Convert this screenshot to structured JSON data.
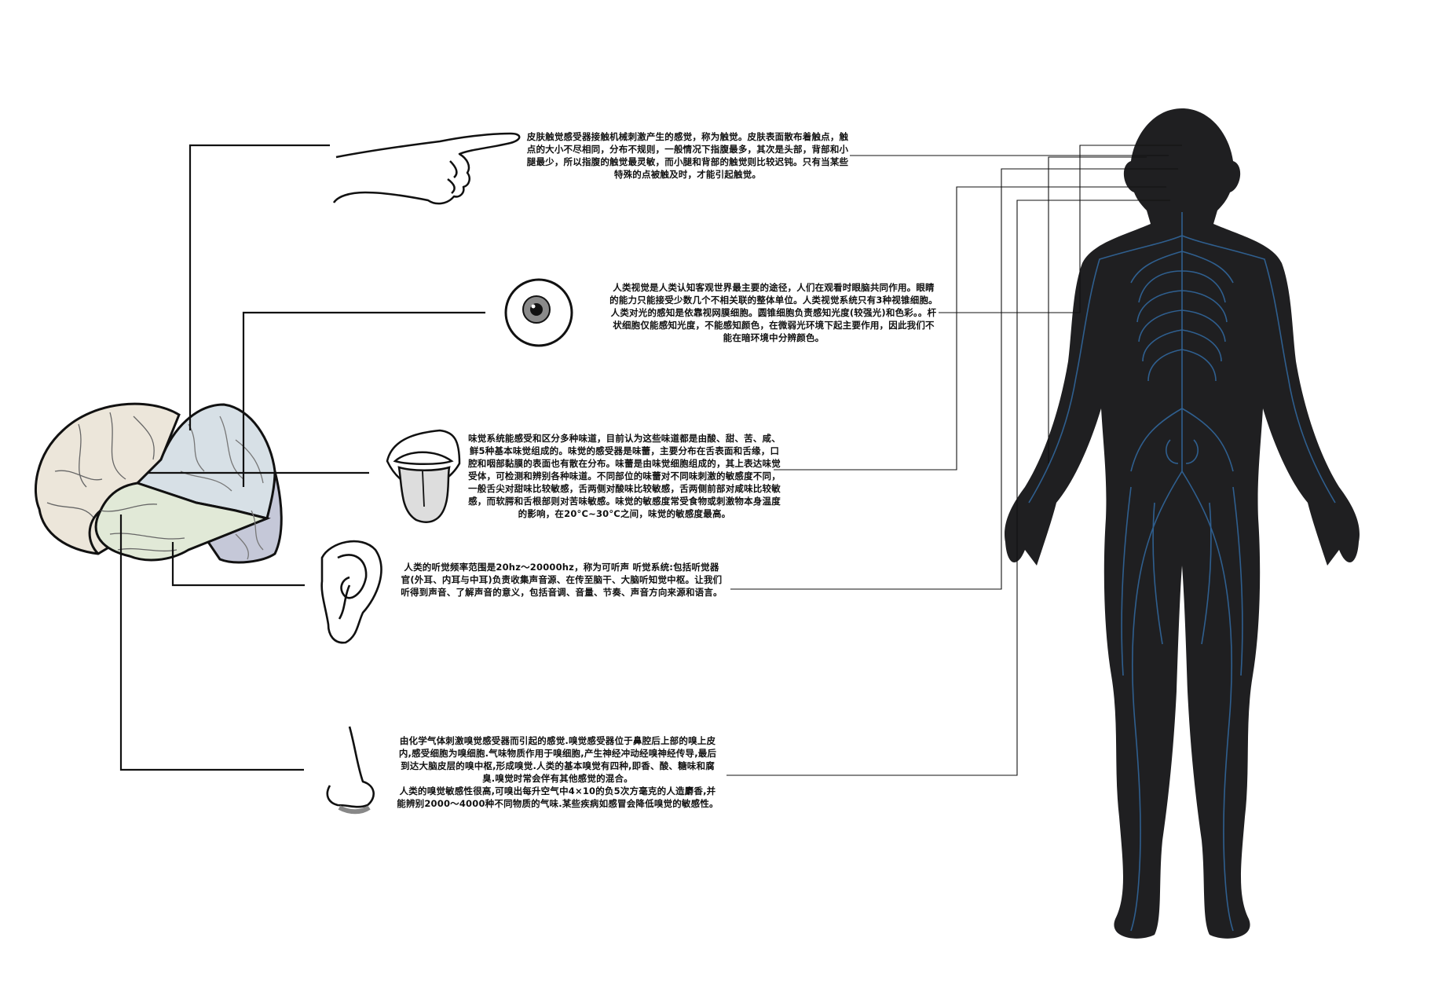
{
  "senses": {
    "touch": {
      "icon": "pointing-hand-icon",
      "text": "皮肤触觉感受器接触机械刺激产生的感觉，称为触觉。皮肤表面散布着触点，触点的大小不尽相同，分布不规则，一般情况下指腹最多，其次是头部，背部和小腿最少，所以指腹的触觉最灵敏，而小腿和背部的触觉则比较迟钝。只有当某些特殊的点被触及时，才能引起触觉。"
    },
    "vision": {
      "icon": "eye-icon",
      "text": "人类视觉是人类认知客观世界最主要的途径，人们在观看时眼脑共同作用。眼睛的能力只能接受少数几个不相关联的整体单位。人类视觉系统只有3种视锥细胞。",
      "text2": "人类对光的感知是依靠视网膜细胞。圆锥细胞负责感知光度(较强光)和色彩。。杆状细胞仅能感知光度，不能感知颜色，在微弱光环境下起主要作用，因此我们不能在暗环境中分辨颜色。"
    },
    "taste": {
      "icon": "mouth-tongue-icon",
      "text": "味觉系统能感受和区分多种味道，目前认为这些味道都是由酸、甜、苦、咸、鲜5种基本味觉组成的。味觉的感受器是味蕾，主要分布在舌表面和舌缘，口腔和咽部黏膜的表面也有散在分布。味蕾是由味觉细胞组成的，其上表达味觉受体，可检测和辨别各种味道。不同部位的味蕾对不同味刺激的敏感度不同，一般舌尖对甜味比较敏感，舌两侧对酸味比较敏感，舌两侧前部对咸味比较敏感，而软腭和舌根部则对苦味敏感。味觉的敏感度常受食物或刺激物本身温度的影响，在20°C~30°C之间，味觉的敏感度最高。"
    },
    "hearing": {
      "icon": "ear-icon",
      "text": "人类的听觉频率范围是20hz～20000hz，称为可听声 听觉系统:包括听觉器官(外耳、内耳与中耳)负责收集声音源、在传至脑干、大脑听知觉中枢。让我们听得到声音、了解声音的意义，包括音调、音量、节奏、声音方向来源和语言。"
    },
    "smell": {
      "icon": "nose-icon",
      "text": "由化学气体刺激嗅觉感受器而引起的感觉.嗅觉感受器位于鼻腔后上部的嗅上皮内,感受细胞为嗅细胞.气味物质作用于嗅细胞,产生神经冲动经嗅神经传导,最后到达大脑皮层的嗅中枢,形成嗅觉.人类的基本嗅觉有四种,即香、酸、糖味和腐臭.嗅觉时常会伴有其他感觉的混合。",
      "text2": "人类的嗅觉敏感性很高,可嗅出每升空气中4×10的负5次方毫克的人造麝香,并能辨别2000～4000种不同物质的气味.某些疾病如感冒会降低嗅觉的敏感性。"
    }
  },
  "colors": {
    "nerve": "#2f5f8f",
    "body": "#1f1f21",
    "frontal_lobe": "#ece6da",
    "parietal_lobe": "#d7e0e6",
    "temporal_lobe": "#e1e9d7",
    "occipital_lobe": "#c5c8d8"
  }
}
